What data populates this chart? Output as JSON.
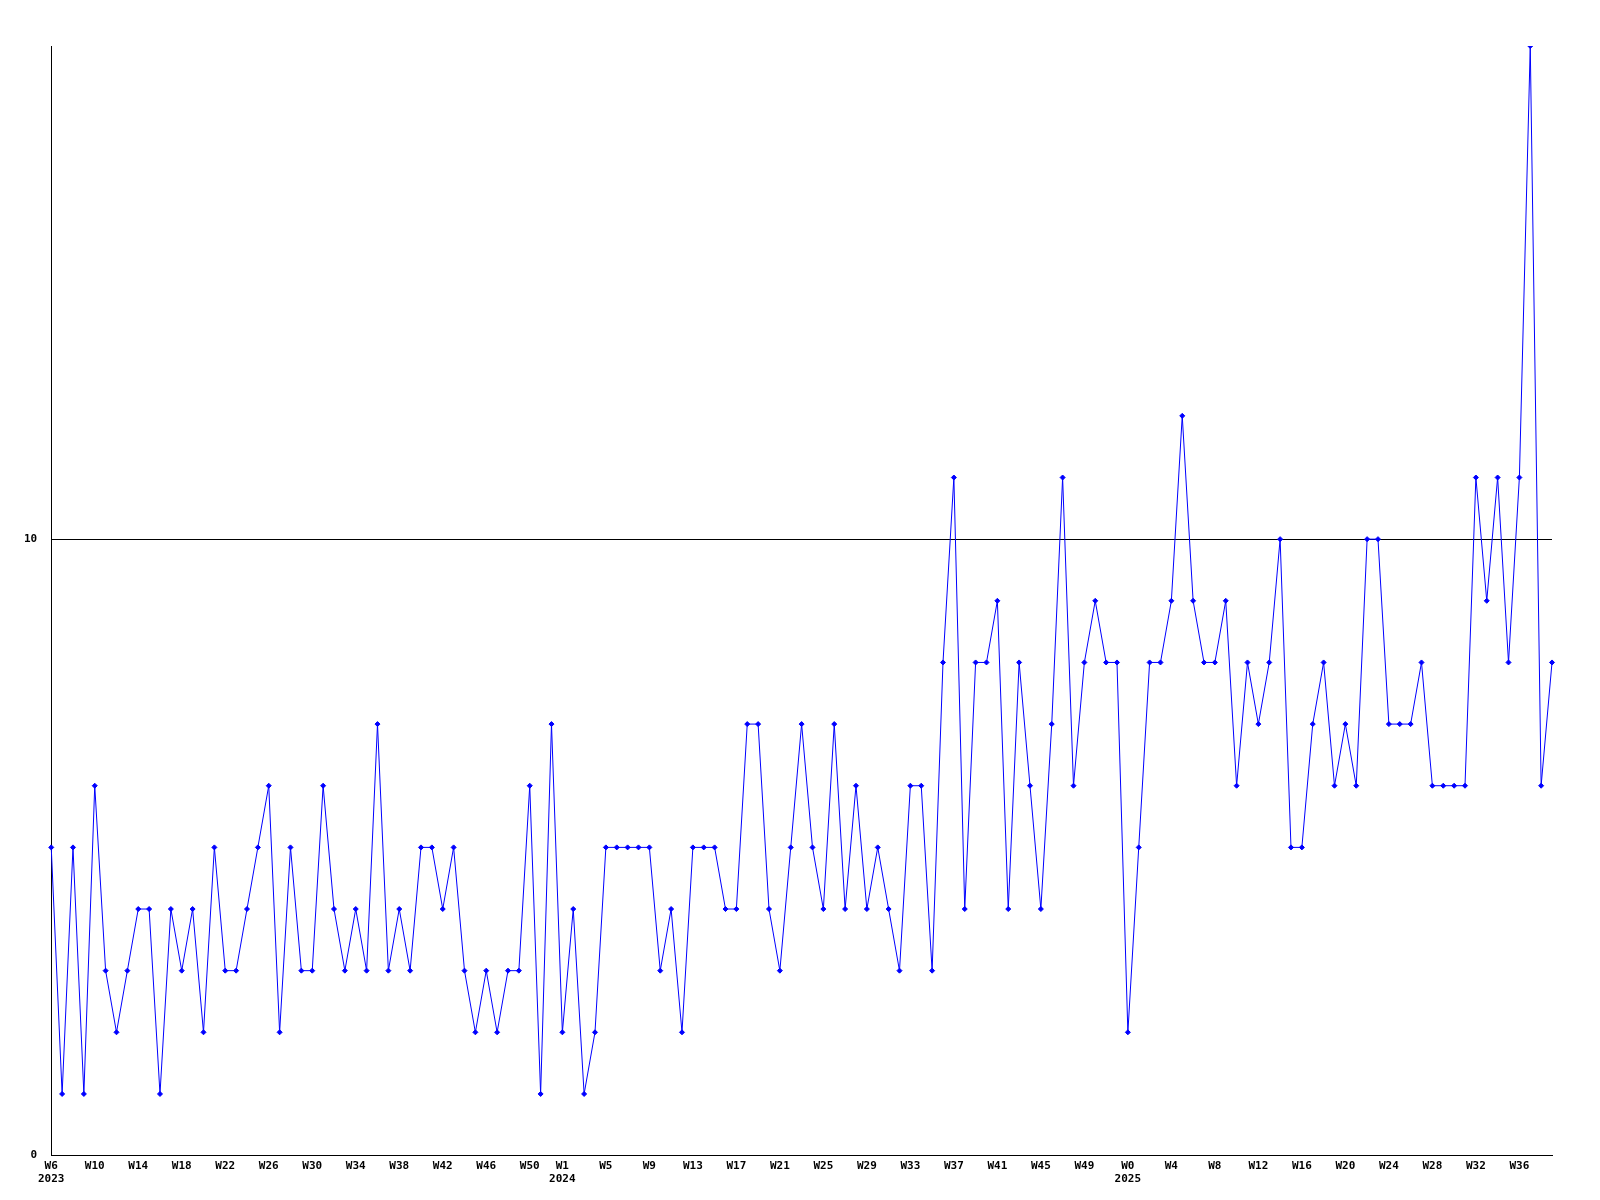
{
  "chart_data": {
    "type": "line",
    "categories": [
      "W6\n2023",
      null,
      null,
      null,
      "W10",
      null,
      null,
      null,
      "W14",
      null,
      null,
      null,
      "W18",
      null,
      null,
      null,
      "W22",
      null,
      null,
      null,
      "W26",
      null,
      null,
      null,
      "W30",
      null,
      null,
      null,
      "W34",
      null,
      null,
      null,
      "W38",
      null,
      null,
      null,
      "W42",
      null,
      null,
      null,
      "W46",
      null,
      null,
      null,
      "W50",
      null,
      null,
      "W1\n2024",
      null,
      null,
      null,
      "W5",
      null,
      null,
      null,
      "W9",
      null,
      null,
      null,
      "W13",
      null,
      null,
      null,
      "W17",
      null,
      null,
      null,
      "W21",
      null,
      null,
      null,
      "W25",
      null,
      null,
      null,
      "W29",
      null,
      null,
      null,
      "W33",
      null,
      null,
      null,
      "W37",
      null,
      null,
      null,
      "W41",
      null,
      null,
      null,
      "W45",
      null,
      null,
      null,
      "W49",
      null,
      null,
      null,
      "W0\n2025",
      null,
      null,
      null,
      "W4",
      null,
      null,
      null,
      "W8",
      null,
      null,
      null,
      "W12",
      null,
      null,
      null,
      "W16",
      null,
      null,
      null,
      "W20",
      null,
      null,
      null,
      "W24",
      null,
      null,
      null,
      "W28",
      null,
      null,
      null,
      "W32",
      null,
      null,
      null,
      "W36",
      null,
      null,
      null
    ],
    "series": [
      {
        "color": "#0000ff",
        "values": [
          5,
          1,
          5,
          1,
          6,
          3,
          2,
          3,
          4,
          4,
          1,
          4,
          3,
          4,
          2,
          5,
          3,
          3,
          4,
          5,
          6,
          2,
          5,
          3,
          3,
          6,
          4,
          3,
          4,
          3,
          7,
          3,
          4,
          3,
          5,
          5,
          4,
          5,
          3,
          2,
          3,
          2,
          3,
          3,
          6,
          1,
          7,
          2,
          4,
          1,
          2,
          5,
          5,
          5,
          5,
          5,
          3,
          4,
          2,
          5,
          5,
          5,
          4,
          4,
          7,
          7,
          4,
          3,
          5,
          7,
          5,
          4,
          7,
          4,
          6,
          4,
          5,
          4,
          3,
          6,
          6,
          3,
          8,
          11,
          4,
          8,
          8,
          9,
          4,
          8,
          6,
          4,
          7,
          11,
          6,
          8,
          9,
          8,
          8,
          2,
          5,
          8,
          8,
          9,
          12,
          9,
          8,
          8,
          9,
          6,
          8,
          7,
          8,
          10,
          5,
          5,
          7,
          8,
          6,
          7,
          6,
          10,
          10,
          7,
          7,
          7,
          8,
          6,
          6,
          6,
          6,
          11,
          9,
          11,
          8,
          11,
          18,
          6,
          8
        ]
      }
    ],
    "ylim": [
      0,
      18
    ],
    "yticks": [
      0,
      10
    ],
    "grid": "y",
    "legend": false,
    "marker": "diamond",
    "line_style": "solid"
  }
}
